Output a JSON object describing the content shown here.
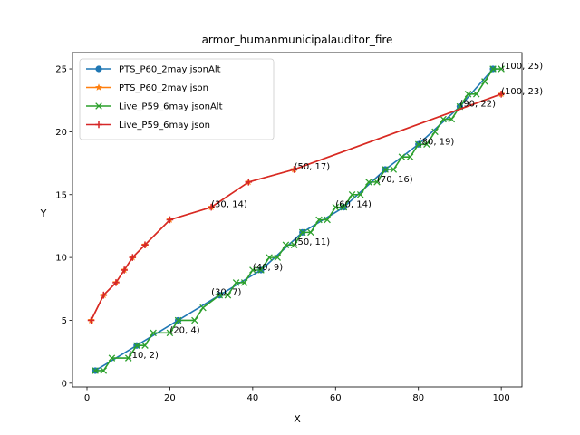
{
  "chart_data": {
    "type": "line",
    "title": "armor_humanmunicipalauditor_fire",
    "xlabel": "X",
    "ylabel": "Y",
    "xlim": [
      -3.5,
      105
    ],
    "ylim": [
      -0.3,
      26.3
    ],
    "xticks": [
      0,
      20,
      40,
      60,
      80,
      100
    ],
    "yticks": [
      0,
      5,
      10,
      15,
      20,
      25
    ],
    "grid": false,
    "legend_position": "upper-left",
    "series": [
      {
        "name": "PTS_P60_2may jsonAlt",
        "color": "#1f77b4",
        "marker": "circle",
        "x": [
          2,
          12,
          22,
          32,
          42,
          52,
          62,
          72,
          80,
          90,
          98
        ],
        "y": [
          1,
          3,
          5,
          7,
          9,
          12,
          14,
          17,
          19,
          22,
          25
        ]
      },
      {
        "name": "PTS_P60_2may json",
        "color": "#ff7f0e",
        "marker": "star",
        "x": [
          1,
          4,
          7,
          9,
          11,
          14,
          20,
          30,
          39,
          50,
          100
        ],
        "y": [
          5,
          7,
          8,
          9,
          10,
          11,
          13,
          14,
          16,
          17,
          23
        ]
      },
      {
        "name": "Live_P59_6may jsonAlt",
        "color": "#2ca02c",
        "marker": "x",
        "x": [
          2,
          4,
          6,
          10,
          12,
          14,
          16,
          20,
          22,
          26,
          28,
          32,
          34,
          36,
          38,
          40,
          42,
          44,
          46,
          48,
          50,
          52,
          54,
          56,
          58,
          60,
          62,
          64,
          66,
          68,
          70,
          72,
          74,
          76,
          78,
          80,
          82,
          84,
          86,
          88,
          90,
          92,
          94,
          96,
          98,
          100
        ],
        "y": [
          1,
          1,
          2,
          2,
          3,
          3,
          4,
          4,
          5,
          5,
          6,
          7,
          7,
          8,
          8,
          9,
          9,
          10,
          10,
          11,
          11,
          12,
          12,
          13,
          13,
          14,
          14,
          15,
          15,
          16,
          16,
          17,
          17,
          18,
          18,
          19,
          19,
          20,
          21,
          21,
          22,
          23,
          23,
          24,
          25,
          25
        ]
      },
      {
        "name": "Live_P59_6may json",
        "color": "#d62728",
        "marker": "plus",
        "x": [
          1,
          4,
          7,
          9,
          11,
          14,
          20,
          30,
          39,
          50,
          100
        ],
        "y": [
          5,
          7,
          8,
          9,
          10,
          11,
          13,
          14,
          16,
          17,
          23
        ]
      }
    ],
    "annotations": [
      {
        "x": 10,
        "y": 2,
        "label": "(10, 2)"
      },
      {
        "x": 20,
        "y": 4,
        "label": "(20, 4)"
      },
      {
        "x": 30,
        "y": 7,
        "label": "(30, 7)"
      },
      {
        "x": 30,
        "y": 14,
        "label": "(30, 14)"
      },
      {
        "x": 40,
        "y": 9,
        "label": "(40, 9)"
      },
      {
        "x": 50,
        "y": 11,
        "label": "(50, 11)"
      },
      {
        "x": 50,
        "y": 17,
        "label": "(50, 17)"
      },
      {
        "x": 60,
        "y": 14,
        "label": "(60, 14)"
      },
      {
        "x": 70,
        "y": 16,
        "label": "(70, 16)"
      },
      {
        "x": 80,
        "y": 19,
        "label": "(80, 19)"
      },
      {
        "x": 90,
        "y": 22,
        "label": "(90, 22)"
      },
      {
        "x": 100,
        "y": 25,
        "label": "(100, 25)"
      },
      {
        "x": 100,
        "y": 23,
        "label": "(100, 23)"
      }
    ]
  }
}
